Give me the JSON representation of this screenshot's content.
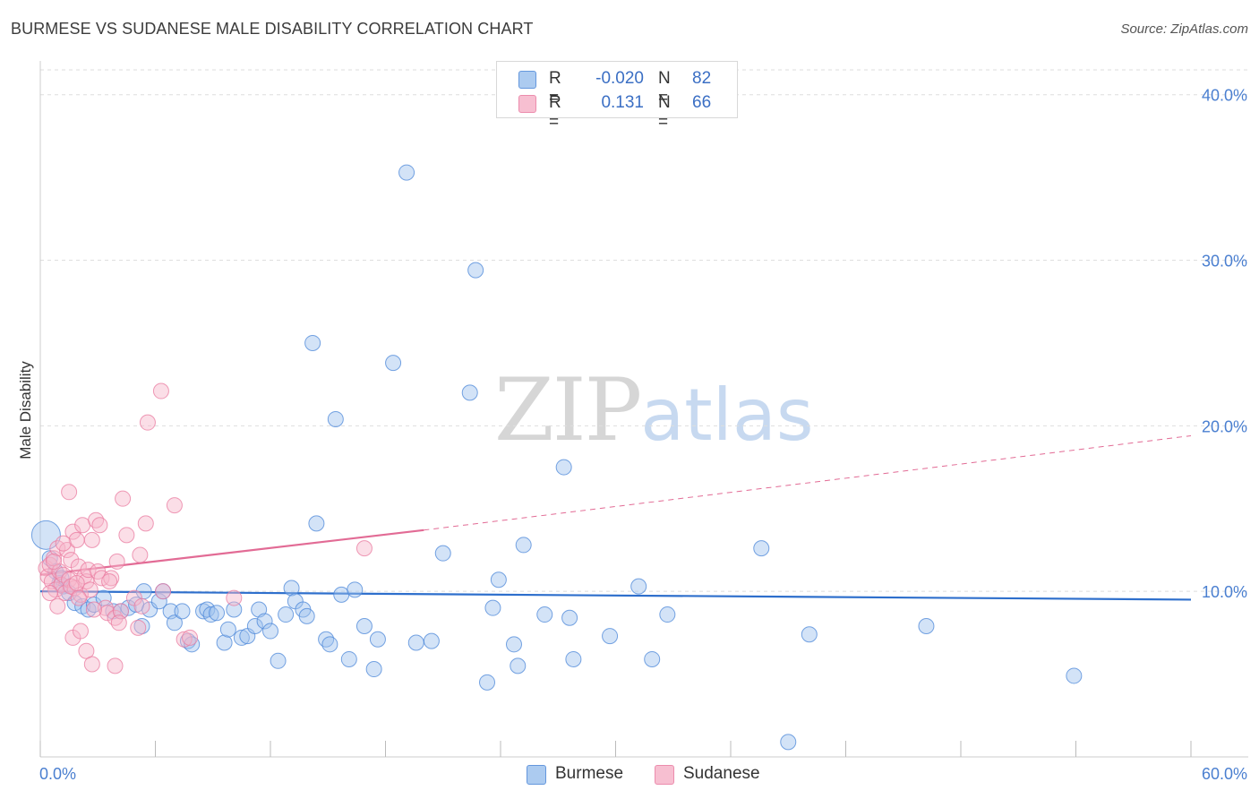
{
  "title": "BURMESE VS SUDANESE MALE DISABILITY CORRELATION CHART",
  "source": "Source: ZipAtlas.com",
  "watermark": {
    "zip": "ZIP",
    "atlas": "atlas"
  },
  "colors": {
    "burmese_fill": "#9ec2ee",
    "burmese_stroke": "#4a86d8",
    "burmese_line": "#2e6fcc",
    "sudanese_fill": "#f6b5c9",
    "sudanese_stroke": "#e9799f",
    "sudanese_line": "#e26b95",
    "grid": "#dedede",
    "tick_label": "#4a7fd0"
  },
  "legend": {
    "rows": [
      {
        "r_label": "R =",
        "r_value": "-0.020",
        "n_label": "N =",
        "n_value": "82",
        "series": "burmese"
      },
      {
        "r_label": "R =",
        "r_value": "0.131",
        "n_label": "N =",
        "n_value": "66",
        "series": "sudanese"
      }
    ]
  },
  "chart_data": {
    "type": "scatter",
    "title": "BURMESE VS SUDANESE MALE DISABILITY CORRELATION CHART",
    "xlabel": "",
    "ylabel": "Male Disability",
    "xlim": [
      0,
      60
    ],
    "ylim": [
      0,
      41.5
    ],
    "x_tick_labels": [
      "0.0%",
      "60.0%"
    ],
    "y_ticks": [
      10,
      20,
      30,
      40
    ],
    "y_tick_labels": [
      "10.0%",
      "20.0%",
      "30.0%",
      "40.0%"
    ],
    "grid": true,
    "legend_position": "top-center",
    "series": [
      {
        "name": "Burmese",
        "color": "#9ec2ee",
        "trend": {
          "x": [
            0,
            60
          ],
          "y": [
            10.0,
            9.5
          ],
          "style": "solid"
        },
        "points": [
          [
            0.3,
            13.4
          ],
          [
            0.5,
            12.0
          ],
          [
            0.8,
            11.2
          ],
          [
            1.0,
            10.5
          ],
          [
            1.2,
            10.3
          ],
          [
            1.5,
            9.9
          ],
          [
            1.8,
            9.3
          ],
          [
            2.2,
            9.1
          ],
          [
            2.5,
            8.9
          ],
          [
            2.8,
            9.2
          ],
          [
            3.3,
            9.6
          ],
          [
            3.8,
            8.8
          ],
          [
            4.2,
            8.8
          ],
          [
            4.6,
            9.0
          ],
          [
            5.0,
            9.2
          ],
          [
            5.3,
            7.9
          ],
          [
            5.4,
            10.0
          ],
          [
            5.7,
            8.9
          ],
          [
            6.2,
            9.4
          ],
          [
            6.4,
            10.0
          ],
          [
            6.8,
            8.8
          ],
          [
            7.0,
            8.1
          ],
          [
            7.4,
            8.8
          ],
          [
            7.7,
            7.0
          ],
          [
            7.9,
            6.8
          ],
          [
            8.5,
            8.8
          ],
          [
            8.7,
            8.9
          ],
          [
            8.9,
            8.6
          ],
          [
            9.2,
            8.7
          ],
          [
            9.6,
            6.9
          ],
          [
            9.8,
            7.7
          ],
          [
            10.1,
            8.9
          ],
          [
            10.5,
            7.2
          ],
          [
            10.8,
            7.3
          ],
          [
            11.2,
            7.9
          ],
          [
            11.4,
            8.9
          ],
          [
            11.7,
            8.2
          ],
          [
            12.0,
            7.6
          ],
          [
            12.4,
            5.8
          ],
          [
            12.8,
            8.6
          ],
          [
            13.1,
            10.2
          ],
          [
            13.3,
            9.4
          ],
          [
            13.7,
            8.9
          ],
          [
            13.9,
            8.5
          ],
          [
            14.2,
            25.0
          ],
          [
            14.4,
            14.1
          ],
          [
            14.9,
            7.1
          ],
          [
            15.1,
            6.8
          ],
          [
            15.4,
            20.4
          ],
          [
            15.7,
            9.8
          ],
          [
            16.1,
            5.9
          ],
          [
            16.4,
            10.1
          ],
          [
            16.9,
            7.9
          ],
          [
            17.4,
            5.3
          ],
          [
            17.6,
            7.1
          ],
          [
            18.4,
            23.8
          ],
          [
            19.1,
            35.3
          ],
          [
            19.6,
            6.9
          ],
          [
            20.4,
            7.0
          ],
          [
            21.0,
            12.3
          ],
          [
            22.4,
            22.0
          ],
          [
            22.7,
            29.4
          ],
          [
            23.3,
            4.5
          ],
          [
            23.6,
            9.0
          ],
          [
            23.9,
            10.7
          ],
          [
            24.7,
            6.8
          ],
          [
            24.9,
            5.5
          ],
          [
            25.2,
            12.8
          ],
          [
            26.3,
            8.6
          ],
          [
            27.3,
            17.5
          ],
          [
            27.6,
            8.4
          ],
          [
            27.8,
            5.9
          ],
          [
            29.7,
            7.3
          ],
          [
            31.2,
            10.3
          ],
          [
            31.9,
            5.9
          ],
          [
            32.7,
            8.6
          ],
          [
            37.6,
            12.6
          ],
          [
            39.0,
            0.9
          ],
          [
            40.1,
            7.4
          ],
          [
            46.2,
            7.9
          ],
          [
            53.9,
            4.9
          ],
          [
            1.1,
            10.8
          ]
        ]
      },
      {
        "name": "Sudanese",
        "color": "#f6b5c9",
        "trend": {
          "x": [
            0,
            20,
            60
          ],
          "y": [
            11.0,
            13.7,
            19.4
          ],
          "style": "solid-then-dashed"
        },
        "points": [
          [
            0.3,
            11.4
          ],
          [
            0.4,
            10.9
          ],
          [
            0.5,
            11.6
          ],
          [
            0.6,
            10.6
          ],
          [
            0.7,
            12.0
          ],
          [
            0.8,
            10.1
          ],
          [
            0.9,
            12.6
          ],
          [
            1.0,
            11.2
          ],
          [
            1.1,
            10.4
          ],
          [
            1.2,
            11.0
          ],
          [
            1.3,
            9.9
          ],
          [
            1.4,
            12.5
          ],
          [
            1.5,
            10.7
          ],
          [
            1.6,
            11.9
          ],
          [
            1.7,
            13.6
          ],
          [
            1.8,
            10.2
          ],
          [
            1.9,
            13.1
          ],
          [
            2.0,
            11.5
          ],
          [
            2.1,
            9.8
          ],
          [
            2.2,
            14.0
          ],
          [
            2.3,
            10.9
          ],
          [
            2.4,
            10.6
          ],
          [
            2.5,
            11.3
          ],
          [
            2.6,
            10.1
          ],
          [
            2.7,
            13.1
          ],
          [
            2.9,
            14.3
          ],
          [
            3.0,
            11.2
          ],
          [
            3.1,
            14.0
          ],
          [
            3.2,
            10.8
          ],
          [
            3.4,
            9.0
          ],
          [
            3.5,
            8.7
          ],
          [
            3.7,
            10.8
          ],
          [
            3.9,
            8.4
          ],
          [
            4.0,
            11.8
          ],
          [
            4.2,
            8.8
          ],
          [
            4.3,
            15.6
          ],
          [
            4.5,
            13.4
          ],
          [
            4.9,
            9.6
          ],
          [
            5.1,
            7.8
          ],
          [
            5.3,
            9.1
          ],
          [
            5.2,
            12.2
          ],
          [
            5.5,
            14.1
          ],
          [
            5.6,
            20.2
          ],
          [
            6.3,
            22.1
          ],
          [
            6.4,
            10.0
          ],
          [
            7.0,
            15.2
          ],
          [
            7.5,
            7.1
          ],
          [
            7.8,
            7.2
          ],
          [
            10.1,
            9.6
          ],
          [
            16.9,
            12.6
          ],
          [
            1.5,
            16.0
          ],
          [
            1.7,
            7.2
          ],
          [
            2.1,
            7.6
          ],
          [
            2.4,
            6.4
          ],
          [
            2.7,
            5.6
          ],
          [
            3.9,
            5.5
          ],
          [
            4.1,
            8.1
          ],
          [
            0.5,
            9.9
          ],
          [
            0.9,
            9.1
          ],
          [
            1.6,
            10.3
          ],
          [
            2.0,
            9.6
          ],
          [
            2.8,
            8.9
          ],
          [
            3.6,
            10.6
          ],
          [
            1.2,
            12.9
          ],
          [
            0.7,
            11.8
          ],
          [
            1.9,
            10.5
          ]
        ]
      }
    ]
  },
  "bottom_legend": [
    {
      "label": "Burmese",
      "series": "burmese"
    },
    {
      "label": "Sudanese",
      "series": "sudanese"
    }
  ]
}
